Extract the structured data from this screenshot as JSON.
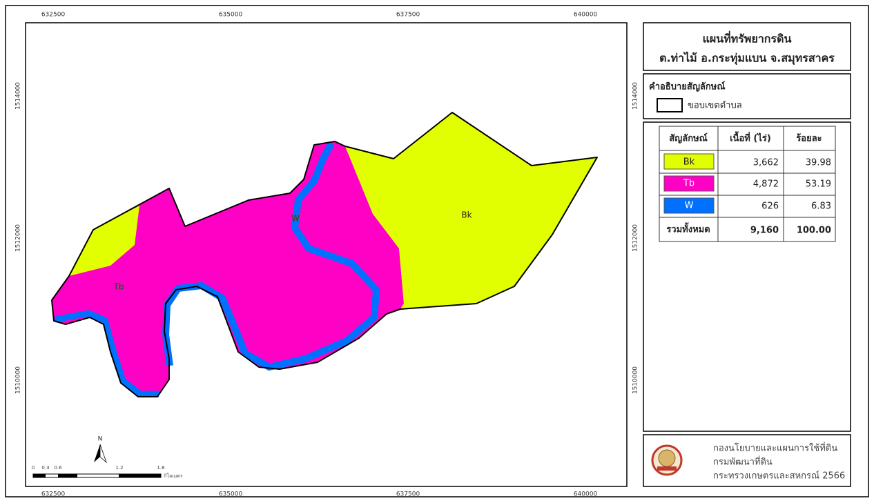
{
  "header": {
    "title": "แผนที่ทรัพยากรดิน",
    "subtitle": "ต.ท่าไม้ อ.กระทุ่มแบน จ.สมุทรสาคร"
  },
  "map": {
    "x_coords": [
      "632500",
      "635000",
      "637500",
      "640000"
    ],
    "y_coords": [
      "1514000",
      "1512000",
      "1510000"
    ],
    "labels": [
      "Tb",
      "W",
      "Bk"
    ],
    "north": "N"
  },
  "scale_bar": {
    "labels": [
      "0",
      "0.3",
      "0.6",
      "1.2",
      "1.8"
    ],
    "unit": "กิโลเมตร"
  },
  "legend": {
    "title": "คำอธิบายสัญลักษณ์",
    "items": [
      "ขอบเขตตำบล"
    ]
  },
  "table": {
    "header": [
      "สัญลักษณ์",
      "เนื้อที่ (ไร่)",
      "ร้อยละ"
    ],
    "rows": [
      [
        "Bk",
        "3,662",
        "39.98"
      ],
      [
        "Tb",
        "4,872",
        "53.19"
      ],
      [
        "W",
        "626",
        "6.83"
      ]
    ],
    "total": [
      "รวมทั้งหมด",
      "9,160",
      "100.00"
    ]
  },
  "footer": {
    "lines": [
      "กองนโยบายและแผนการใช้ที่ดิน",
      "กรมพัฒนาที่ดิน",
      "กระทรวงเกษตรและสหกรณ์ 2566"
    ]
  }
}
